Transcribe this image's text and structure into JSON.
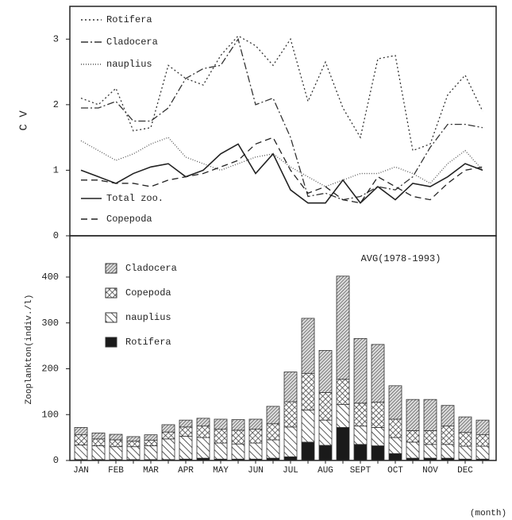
{
  "chart_data": [
    {
      "type": "line",
      "ylabel": "C V",
      "ylim": [
        0,
        3.5
      ],
      "yticks": [
        0,
        1,
        2,
        3
      ],
      "legend": "upper left",
      "series": [
        {
          "name": "Rotifera",
          "color": "#333",
          "style": "dotted",
          "values": [
            2.1,
            2.0,
            2.25,
            1.6,
            1.65,
            2.6,
            2.4,
            2.3,
            2.75,
            3.05,
            2.9,
            2.6,
            3.0,
            2.05,
            2.65,
            1.95,
            1.5,
            2.7,
            2.75,
            1.3,
            1.4,
            2.15,
            2.45,
            1.9
          ]
        },
        {
          "name": "Cladocera",
          "color": "#333",
          "style": "dashdot",
          "values": [
            1.95,
            1.95,
            2.05,
            1.75,
            1.75,
            1.95,
            2.4,
            2.55,
            2.6,
            3.0,
            2.0,
            2.1,
            1.5,
            0.6,
            0.65,
            0.55,
            0.6,
            0.75,
            0.7,
            0.9,
            1.35,
            1.7,
            1.7,
            1.65
          ]
        },
        {
          "name": "nauplius",
          "color": "#555",
          "style": "fine-dotted",
          "values": [
            1.45,
            1.3,
            1.15,
            1.25,
            1.4,
            1.5,
            1.2,
            1.1,
            1.0,
            1.1,
            1.2,
            1.25,
            1.05,
            0.9,
            0.75,
            0.85,
            0.95,
            0.95,
            1.05,
            0.95,
            0.8,
            1.1,
            1.3,
            1.0
          ]
        },
        {
          "name": "Total zoo.",
          "color": "#222",
          "style": "solid",
          "values": [
            1.0,
            0.9,
            0.8,
            0.95,
            1.05,
            1.1,
            0.9,
            1.0,
            1.25,
            1.4,
            0.95,
            1.25,
            0.7,
            0.5,
            0.5,
            0.85,
            0.5,
            0.75,
            0.55,
            0.8,
            0.75,
            0.9,
            1.1,
            1.0
          ]
        },
        {
          "name": "Copepoda",
          "color": "#222",
          "style": "dashed",
          "values": [
            0.85,
            0.85,
            0.8,
            0.8,
            0.75,
            0.85,
            0.9,
            0.95,
            1.05,
            1.15,
            1.4,
            1.5,
            1.0,
            0.65,
            0.75,
            0.55,
            0.5,
            0.9,
            0.75,
            0.6,
            0.55,
            0.8,
            1.0,
            1.05
          ]
        }
      ]
    },
    {
      "type": "stacked-bar",
      "ylabel": "Zooplankton(indiv./l)",
      "xlabel": "(month)",
      "annotation": "AVG(1978-1993)",
      "ylim": [
        0,
        490
      ],
      "yticks": [
        0,
        100,
        200,
        300,
        400
      ],
      "categories": [
        "JAN",
        null,
        "FEB",
        null,
        "MAR",
        null,
        "APR",
        null,
        "MAY",
        null,
        "JUN",
        null,
        "JUL",
        null,
        "AUG",
        null,
        "SEPT",
        null,
        "OCT",
        null,
        "NOV",
        null,
        "DEC",
        null
      ],
      "series": [
        {
          "name": "Rotifera",
          "color": "#1a1a1a",
          "pattern": "solid",
          "values": [
            2,
            2,
            2,
            2,
            2,
            2,
            3,
            5,
            3,
            3,
            3,
            5,
            8,
            40,
            33,
            72,
            35,
            32,
            15,
            5,
            5,
            5,
            3,
            3
          ]
        },
        {
          "name": "nauplius",
          "color": "#333",
          "pattern": "back-hatch",
          "values": [
            32,
            30,
            28,
            28,
            30,
            45,
            50,
            45,
            35,
            33,
            35,
            40,
            65,
            70,
            55,
            50,
            40,
            40,
            35,
            35,
            30,
            30,
            28,
            28
          ]
        },
        {
          "name": "Copepoda",
          "color": "#333",
          "pattern": "cross-hatch",
          "values": [
            22,
            15,
            15,
            12,
            12,
            15,
            20,
            25,
            30,
            30,
            30,
            35,
            55,
            80,
            60,
            55,
            50,
            55,
            40,
            25,
            30,
            40,
            30,
            25
          ]
        },
        {
          "name": "Cladocera",
          "color": "#333",
          "pattern": "dense-hatch",
          "values": [
            16,
            13,
            12,
            10,
            12,
            16,
            15,
            17,
            22,
            23,
            22,
            38,
            65,
            120,
            92,
            225,
            141,
            126,
            73,
            68,
            68,
            45,
            34,
            32
          ]
        }
      ]
    }
  ]
}
